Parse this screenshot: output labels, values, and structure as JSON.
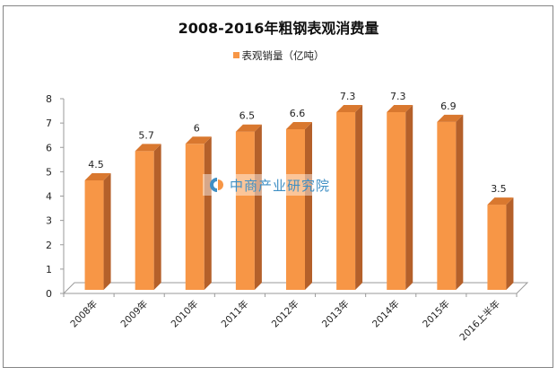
{
  "chart_data": {
    "type": "bar",
    "style": "3d-column",
    "title": "2008-2016年粗钢表观消费量",
    "legend": [
      {
        "name": "表观销量（亿吨）",
        "color": "#F79646"
      }
    ],
    "legend_position": "top",
    "categories": [
      "2008年",
      "2009年",
      "2010年",
      "2011年",
      "2012年",
      "2013年",
      "2014年",
      "2015年",
      "2016上半年"
    ],
    "series": [
      {
        "name": "表观销量（亿吨）",
        "values": [
          4.5,
          5.7,
          6,
          6.5,
          6.6,
          7.3,
          7.3,
          6.9,
          3.5
        ]
      }
    ],
    "data_labels": [
      "4.5",
      "5.7",
      "6",
      "6.5",
      "6.6",
      "7.3",
      "7.3",
      "6.9",
      "3.5"
    ],
    "xlabel": "",
    "ylabel": "",
    "ylim": [
      0,
      8
    ],
    "yticks": [
      "0",
      "1",
      "2",
      "3",
      "4",
      "5",
      "6",
      "7",
      "8"
    ],
    "grid": false
  },
  "watermark": {
    "text": "中商产业研究院"
  },
  "colors": {
    "bar_front": "#F79646",
    "bar_side": "#B4602A",
    "bar_top": "#D9782F",
    "axis": "#9a9a9a",
    "frame": "#858585"
  }
}
